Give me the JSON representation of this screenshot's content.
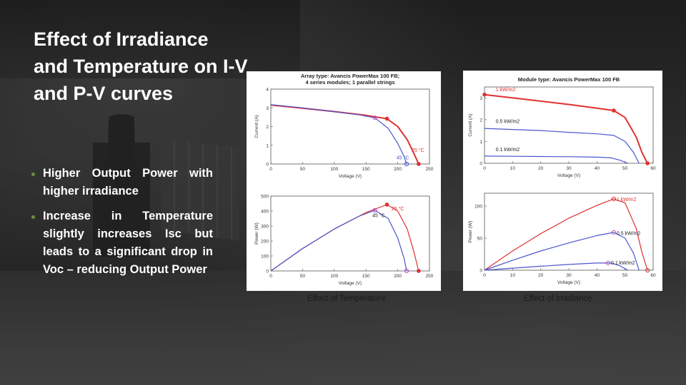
{
  "slide": {
    "title": "Effect of Irradiance and Temperature on I-V and P-V curves",
    "bullets": [
      "Higher Output Power with higher irradiance",
      "Increase in Temperature slightly increases Isc but leads to a significant drop in Voc – reducing Output Power"
    ],
    "bullet_color": "#6f8f3a",
    "captions": {
      "temperature": "Effect of Temperature",
      "irradiance": "Effect of irradiance"
    }
  },
  "chart_data": [
    {
      "type": "line",
      "title": "Array type: Avancis PowerMax 100 FB; 4 series modules; 1 parallel strings",
      "xlabel": "Voltage (V)",
      "ylabel": "Current (A)",
      "xlim": [
        0,
        250
      ],
      "ylim": [
        0,
        4
      ],
      "xticks": [
        0,
        50,
        100,
        150,
        200,
        250
      ],
      "yticks": [
        0,
        1,
        2,
        3,
        4
      ],
      "series": [
        {
          "name": "25 °C",
          "color": "#e03030",
          "x": [
            0,
            50,
            100,
            150,
            183,
            200,
            215,
            225,
            233
          ],
          "y": [
            3.15,
            2.98,
            2.8,
            2.6,
            2.42,
            2.0,
            1.3,
            0.6,
            0
          ]
        },
        {
          "name": "45 °C",
          "color": "#4a55cc",
          "x": [
            0,
            50,
            100,
            140,
            164,
            185,
            200,
            210,
            214
          ],
          "y": [
            3.17,
            3.0,
            2.8,
            2.62,
            2.47,
            1.9,
            1.1,
            0.4,
            0
          ]
        }
      ],
      "markers": [
        {
          "x": 183,
          "y": 2.42,
          "color": "#e03030",
          "type": "dot"
        },
        {
          "x": 164,
          "y": 2.47,
          "color": "#c050c0",
          "type": "ring"
        },
        {
          "x": 233,
          "y": 0,
          "color": "#e03030",
          "type": "dot"
        },
        {
          "x": 214,
          "y": 0,
          "color": "#4a55cc",
          "type": "ring"
        }
      ],
      "annotations": [
        {
          "text": "25 °C",
          "x": 222,
          "y": 0.65,
          "color": "#e03030"
        },
        {
          "text": "45 °C",
          "x": 198,
          "y": 0.25,
          "color": "#4a55cc"
        }
      ]
    },
    {
      "type": "line",
      "title": "",
      "xlabel": "Voltage (V)",
      "ylabel": "Power (W)",
      "xlim": [
        0,
        250
      ],
      "ylim": [
        0,
        500
      ],
      "xticks": [
        0,
        50,
        100,
        150,
        200,
        250
      ],
      "yticks": [
        0,
        100,
        200,
        300,
        400,
        500
      ],
      "series": [
        {
          "name": "25 °C",
          "color": "#e03030",
          "x": [
            0,
            50,
            100,
            150,
            183,
            200,
            215,
            225,
            233
          ],
          "y": [
            0,
            149,
            280,
            390,
            443,
            400,
            280,
            135,
            0
          ]
        },
        {
          "name": "45 °C",
          "color": "#4a55cc",
          "x": [
            0,
            50,
            100,
            140,
            164,
            185,
            200,
            210,
            214
          ],
          "y": [
            0,
            150,
            280,
            367,
            405,
            350,
            220,
            84,
            0
          ]
        }
      ],
      "markers": [
        {
          "x": 183,
          "y": 443,
          "color": "#e03030",
          "type": "dot"
        },
        {
          "x": 164,
          "y": 405,
          "color": "#c050c0",
          "type": "ring"
        },
        {
          "x": 233,
          "y": 0,
          "color": "#e03030",
          "type": "dot"
        },
        {
          "x": 214,
          "y": 0,
          "color": "#c050c0",
          "type": "ring"
        }
      ],
      "annotations": [
        {
          "text": "25 °C",
          "x": 190,
          "y": 405,
          "color": "#e03030"
        },
        {
          "text": "45 °C",
          "x": 160,
          "y": 360,
          "color": "#1a1a1a"
        }
      ]
    },
    {
      "type": "line",
      "title": "Module type: Avancis PowerMax 100 FB",
      "xlabel": "Voltage (V)",
      "ylabel": "Current (A)",
      "xlim": [
        0,
        60
      ],
      "ylim": [
        0,
        3.5
      ],
      "xticks": [
        0,
        10,
        20,
        30,
        40,
        50,
        60
      ],
      "yticks": [
        0,
        1,
        2,
        3
      ],
      "series": [
        {
          "name": "1 kW/m2",
          "color": "#e03030",
          "x": [
            0,
            10,
            20,
            30,
            40,
            46,
            50,
            54,
            56,
            58
          ],
          "y": [
            3.15,
            3.0,
            2.85,
            2.7,
            2.53,
            2.42,
            2.1,
            1.2,
            0.5,
            0
          ]
        },
        {
          "name": "0.5 kW/m2",
          "color": "#4a55cc",
          "x": [
            0,
            10,
            20,
            30,
            40,
            46,
            50,
            53,
            55
          ],
          "y": [
            1.6,
            1.55,
            1.5,
            1.42,
            1.35,
            1.28,
            1.0,
            0.5,
            0
          ]
        },
        {
          "name": "0.1 kW/m2",
          "color": "#4a55cc",
          "x": [
            0,
            10,
            20,
            30,
            40,
            45,
            48,
            50,
            51
          ],
          "y": [
            0.33,
            0.32,
            0.31,
            0.3,
            0.28,
            0.25,
            0.15,
            0.05,
            0
          ]
        }
      ],
      "markers": [
        {
          "x": 0,
          "y": 3.15,
          "color": "#e03030",
          "type": "dot"
        },
        {
          "x": 46,
          "y": 2.42,
          "color": "#e03030",
          "type": "dot"
        },
        {
          "x": 58,
          "y": 0,
          "color": "#e03030",
          "type": "dot"
        }
      ],
      "annotations": [
        {
          "text": "1 kW/m2",
          "x": 4,
          "y": 3.3,
          "color": "#e03030"
        },
        {
          "text": "0.5 kW/m2",
          "x": 4,
          "y": 1.85,
          "color": "#1a1a1a"
        },
        {
          "text": "0.1 kW/m2",
          "x": 4,
          "y": 0.55,
          "color": "#1a1a1a"
        }
      ]
    },
    {
      "type": "line",
      "title": "",
      "xlabel": "Voltage (V)",
      "ylabel": "Power (W)",
      "xlim": [
        0,
        60
      ],
      "ylim": [
        0,
        120
      ],
      "xticks": [
        0,
        10,
        20,
        30,
        40,
        50,
        60
      ],
      "yticks": [
        0,
        50,
        100
      ],
      "series": [
        {
          "name": "1 kW/m2",
          "color": "#e03030",
          "x": [
            0,
            10,
            20,
            30,
            40,
            46,
            50,
            54,
            56,
            58
          ],
          "y": [
            0,
            30,
            57,
            81,
            101,
            111,
            105,
            65,
            28,
            0
          ]
        },
        {
          "name": "0.5 kW/m2",
          "color": "#4a55cc",
          "x": [
            0,
            10,
            20,
            30,
            40,
            46,
            50,
            53,
            55
          ],
          "y": [
            0,
            15.5,
            30,
            42.6,
            54,
            58.9,
            50,
            26.5,
            0
          ]
        },
        {
          "name": "0.1 kW/m2",
          "color": "#4a55cc",
          "x": [
            0,
            10,
            20,
            30,
            40,
            45,
            48,
            50,
            51
          ],
          "y": [
            0,
            3.2,
            6.2,
            9,
            11.2,
            11.3,
            7.2,
            2.5,
            0
          ]
        }
      ],
      "markers": [
        {
          "x": 46,
          "y": 111,
          "color": "#e03030",
          "type": "ring"
        },
        {
          "x": 46,
          "y": 58.9,
          "color": "#c050c0",
          "type": "ring"
        },
        {
          "x": 44,
          "y": 11.3,
          "color": "#c050c0",
          "type": "ring"
        },
        {
          "x": 58,
          "y": 0,
          "color": "#e03030",
          "type": "ring"
        }
      ],
      "annotations": [
        {
          "text": "1 kW/m2",
          "x": 47,
          "y": 108,
          "color": "#e03030"
        },
        {
          "text": "0.5 kW/m2",
          "x": 47,
          "y": 55,
          "color": "#1a1a1a"
        },
        {
          "text": "0.1 kW/m2",
          "x": 45,
          "y": 9,
          "color": "#1a1a1a"
        }
      ]
    }
  ]
}
